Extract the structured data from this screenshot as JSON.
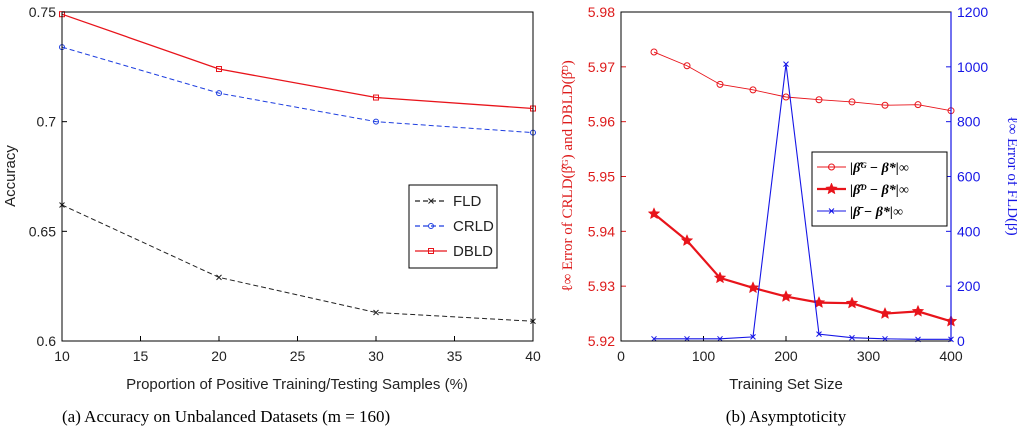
{
  "colors": {
    "fld": "#222222",
    "crld": "#1f3fe0",
    "dbld": "#e8141b",
    "right_axis": "#1515e6",
    "left_axis_b": "#dd1a1a"
  },
  "chart_data": [
    {
      "type": "line",
      "xlabel": "Proportion of Positive Training/Testing Samples (%)",
      "ylabel": "Accuracy",
      "xlim": [
        10,
        40
      ],
      "ylim": [
        0.6,
        0.75
      ],
      "xticks": [
        "10",
        "15",
        "20",
        "25",
        "30",
        "35",
        "40"
      ],
      "yticks": [
        "0.6",
        "0.65",
        "0.7",
        "0.75"
      ],
      "legend_position": "center-right",
      "caption": "(a) Accuracy on Unbalanced Datasets (m = 160)",
      "x": [
        10,
        20,
        30,
        40
      ],
      "series": [
        {
          "name": "FLD",
          "values": [
            0.662,
            0.629,
            0.613,
            0.609
          ],
          "color": "#222222",
          "style": "dashed",
          "marker": "x"
        },
        {
          "name": "CRLD",
          "values": [
            0.734,
            0.713,
            0.7,
            0.695
          ],
          "color": "#1f3fe0",
          "style": "dashed",
          "marker": "circle"
        },
        {
          "name": "DBLD",
          "values": [
            0.749,
            0.724,
            0.711,
            0.706
          ],
          "color": "#e8141b",
          "style": "solid",
          "marker": "square"
        }
      ]
    },
    {
      "type": "line",
      "xlabel": "Training Set Size",
      "ylabel_left": "ℓ∞ Error of CRLD(β̂ᴳ) and DBLD(β̂ᴰ)",
      "ylabel_right": "ℓ∞ Error of FLD(β̄)",
      "xlim": [
        0,
        400
      ],
      "ylim_left": [
        5.92,
        5.98
      ],
      "ylim_right": [
        0,
        1200
      ],
      "xticks": [
        "0",
        "100",
        "200",
        "300",
        "400"
      ],
      "yticks_left": [
        "5.92",
        "5.93",
        "5.94",
        "5.95",
        "5.96",
        "5.97",
        "5.98"
      ],
      "yticks_right": [
        "0",
        "200",
        "400",
        "600",
        "800",
        "1000",
        "1200"
      ],
      "legend_position": "center-right",
      "caption": "(b) Asymptoticity",
      "x": [
        40,
        80,
        120,
        160,
        200,
        240,
        280,
        320,
        360,
        400
      ],
      "series": [
        {
          "name": "|β̂ᴳ − β*|∞",
          "axis": "left",
          "values": [
            5.9727,
            5.9702,
            5.9668,
            5.9658,
            5.9645,
            5.964,
            5.9636,
            5.963,
            5.9631,
            5.962
          ],
          "color": "#e8141b",
          "style": "thin",
          "marker": "circle"
        },
        {
          "name": "|β̂ᴰ − β*|∞",
          "axis": "left",
          "values": [
            5.9432,
            5.9383,
            5.9315,
            5.9297,
            5.9281,
            5.927,
            5.9269,
            5.925,
            5.9254,
            5.9236
          ],
          "color": "#e8141b",
          "style": "thick",
          "marker": "star"
        },
        {
          "name": "|β̄ − β*|∞",
          "axis": "right",
          "values": [
            8,
            8,
            8,
            15,
            1010,
            25,
            12,
            8,
            6,
            6
          ],
          "color": "#1515e6",
          "style": "solid",
          "marker": "x"
        }
      ]
    }
  ]
}
